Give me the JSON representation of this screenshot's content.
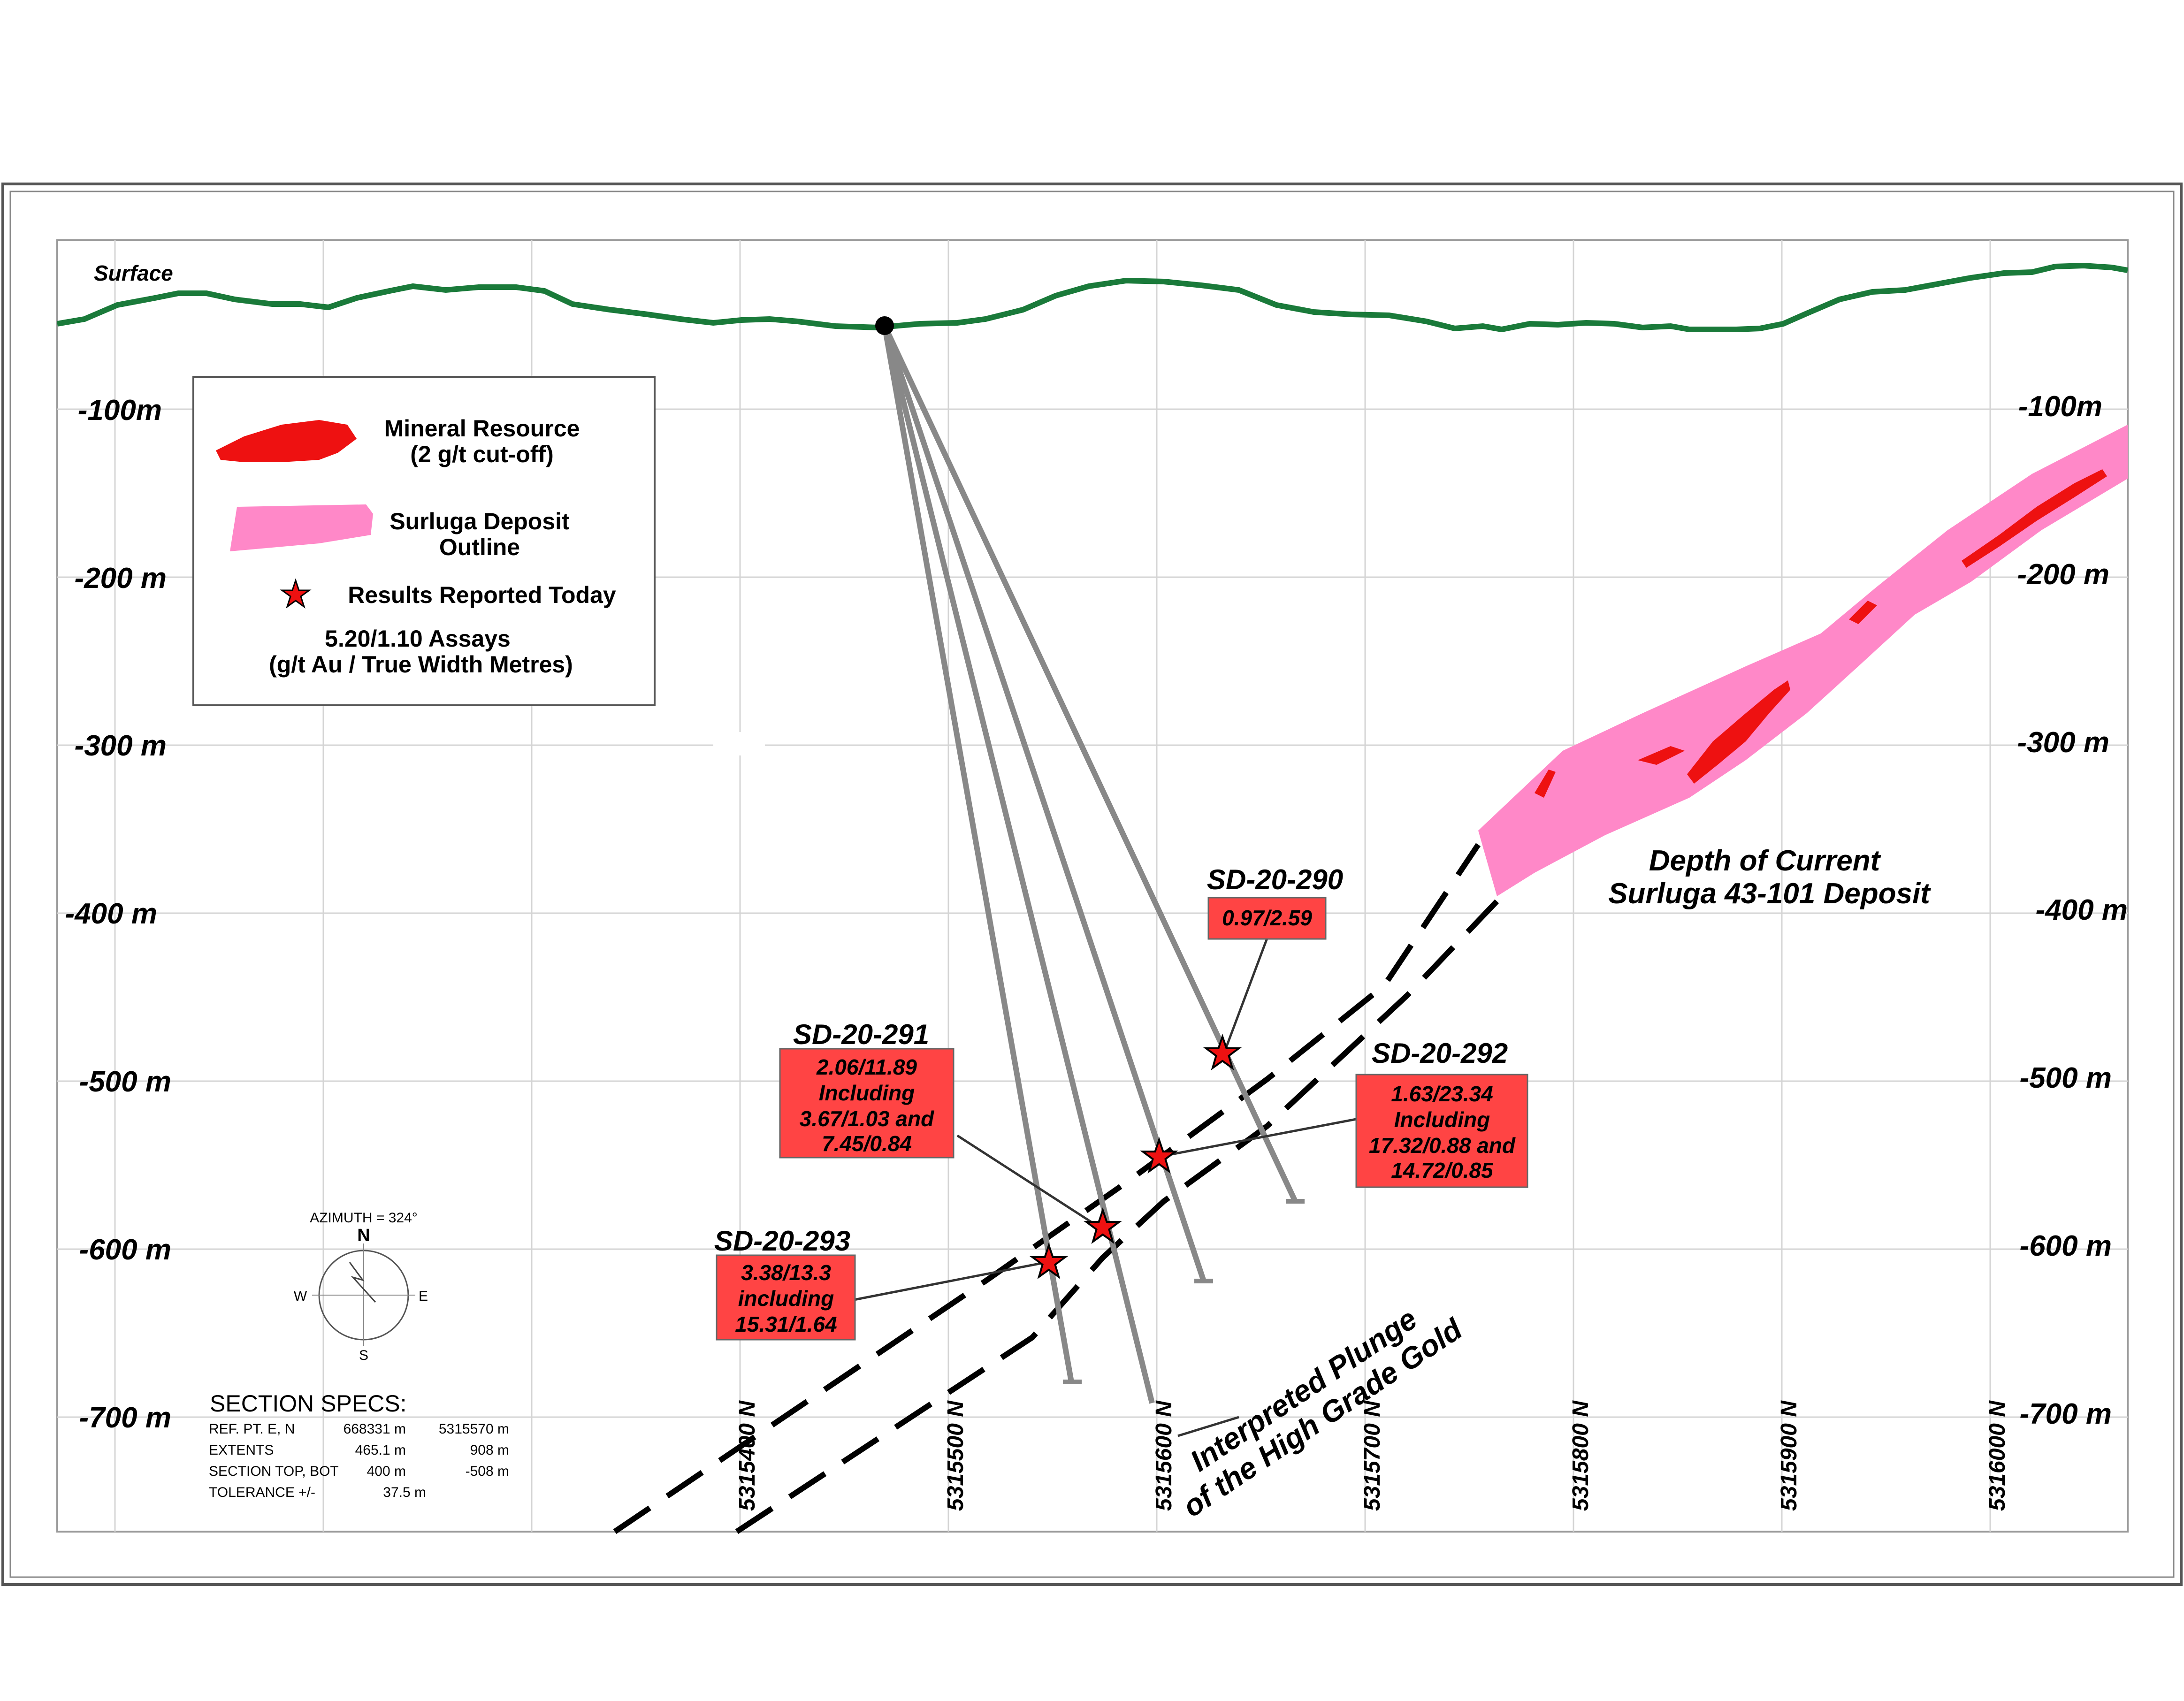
{
  "surface_label": "Surface",
  "depth_labels_left": [
    "-100m",
    "-200 m",
    "-300 m",
    "-400 m",
    "-500 m",
    "-600 m",
    "-700 m"
  ],
  "depth_labels_right": [
    "-100m",
    "-200 m",
    "-300 m",
    "-400 m",
    "-500 m",
    "-600 m",
    "-700 m"
  ],
  "northing_labels": [
    "5315400 N",
    "5315500 N",
    "5315600 N",
    "5315700 N",
    "5315800 N",
    "5315900 N",
    "5316000 N"
  ],
  "legend": {
    "mineral_resource": "Mineral Resource",
    "mineral_resource_cutoff": "(2 g/t cut-off)",
    "deposit_outline_1": "Surluga Deposit",
    "deposit_outline_2": "Outline",
    "results": "Results Reported Today",
    "assays_1": "5.20/1.10 Assays",
    "assays_2": "(g/t Au / True Width Metres)"
  },
  "colors": {
    "surface": "#1a7a3a",
    "deposit": "#ff88c8",
    "resource": "#ee1111",
    "callout": "#ff4444",
    "drillhole": "#888888"
  },
  "holes": [
    {
      "id": "SD-20-290",
      "lines": [
        "0.97/2.59"
      ]
    },
    {
      "id": "SD-20-291",
      "lines": [
        "2.06/11.89",
        "Including",
        "3.67/1.03 and",
        "7.45/0.84"
      ]
    },
    {
      "id": "SD-20-292",
      "lines": [
        "1.63/23.34",
        "Including",
        "17.32/0.88 and",
        "14.72/0.85"
      ]
    },
    {
      "id": "SD-20-293",
      "lines": [
        "3.38/13.3",
        "including",
        "15.31/1.64"
      ]
    }
  ],
  "deposit_label": [
    "Depth of Current",
    "Surluga 43-101 Deposit"
  ],
  "plunge_label": [
    "Interpreted Plunge",
    "of the High Grade Gold"
  ],
  "compass": {
    "azimuth": "AZIMUTH = 324°",
    "n": "N",
    "e": "E",
    "s": "S",
    "w": "W"
  },
  "section_specs": {
    "title": "SECTION  SPECS:",
    "rows": [
      {
        "label": "REF. PT.  E, N",
        "v1": "668331 m",
        "v2": "5315570 m"
      },
      {
        "label": "EXTENTS",
        "v1": "465.1 m",
        "v2": "908 m"
      },
      {
        "label": "SECTION TOP, BOT",
        "v1": "400 m",
        "v2": "-508 m"
      },
      {
        "label": "TOLERANCE  +/-",
        "v1": "37.5 m",
        "v2": ""
      }
    ]
  }
}
